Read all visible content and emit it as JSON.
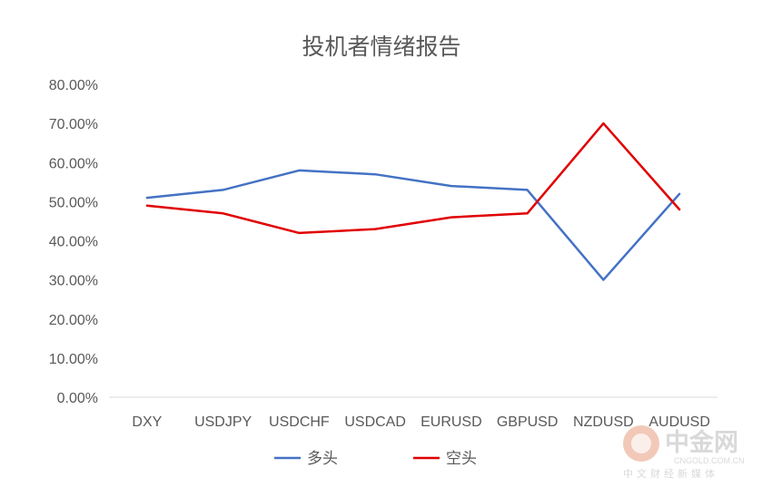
{
  "chart_data": {
    "type": "line",
    "title": "投机者情绪报告",
    "categories": [
      "DXY",
      "USDJPY",
      "USDCHF",
      "USDCAD",
      "EURUSD",
      "GBPUSD",
      "NZDUSD",
      "AUDUSD"
    ],
    "ylim": [
      0,
      0.8
    ],
    "yticks": [
      "0.00%",
      "10.00%",
      "20.00%",
      "30.00%",
      "40.00%",
      "50.00%",
      "60.00%",
      "70.00%",
      "80.00%"
    ],
    "grid": false,
    "legend_position": "bottom",
    "series": [
      {
        "name": "多头",
        "color": "#4472c4",
        "values": [
          0.51,
          0.53,
          0.58,
          0.57,
          0.54,
          0.53,
          0.3,
          0.52
        ]
      },
      {
        "name": "空头",
        "color": "#e00000",
        "values": [
          0.49,
          0.47,
          0.42,
          0.43,
          0.46,
          0.47,
          0.7,
          0.48
        ]
      }
    ]
  },
  "watermark": {
    "brand": "中金网",
    "domain": "CNGOLD.COM.CN",
    "slogan": "中文财经新媒体"
  }
}
